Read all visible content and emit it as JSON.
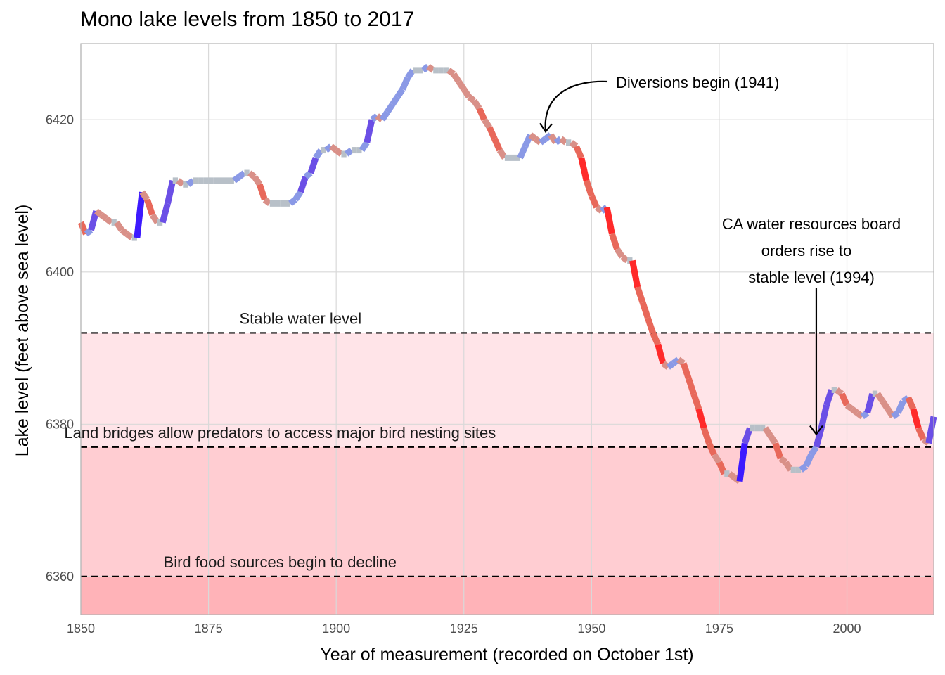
{
  "chart_data": {
    "type": "line",
    "title": "Mono lake levels from 1850 to 2017",
    "xlabel": "Year of measurement (recorded on October 1st)",
    "ylabel": "Lake level (feet above sea level)",
    "xlim": [
      1850,
      2017
    ],
    "ylim": [
      6355,
      6430
    ],
    "x_ticks": [
      1850,
      1875,
      1900,
      1925,
      1950,
      1975,
      2000
    ],
    "y_ticks": [
      6360,
      6380,
      6400,
      6420
    ],
    "grid": true,
    "legend": "none",
    "bands": [
      {
        "from": 6377,
        "to": 6392,
        "color": "#ffe4e8"
      },
      {
        "from": 6360,
        "to": 6377,
        "color": "#ffcdd2"
      },
      {
        "from": 6355,
        "to": 6360,
        "color": "#ffb3b8"
      }
    ],
    "thresholds": [
      {
        "value": 6392,
        "label": "Stable water level",
        "label_x": 1893
      },
      {
        "value": 6377,
        "label": "Land bridges allow predators to access major bird nesting sites",
        "label_x": 1889
      },
      {
        "value": 6360,
        "label": "Bird food sources begin to decline",
        "label_x": 1889
      }
    ],
    "annotations": [
      {
        "text": "Diversions begin (1941)",
        "x": 1941,
        "y": 6417.5
      },
      {
        "lines": [
          "CA water resources board",
          "orders rise to",
          "stable level (1994)"
        ],
        "x": 1994,
        "y": 6378.5
      }
    ],
    "colors": {
      "strong_rise": "#3d1aff",
      "rise": "#6b4fe6",
      "mild_rise": "#8a99e6",
      "flat": "#b8c0c8",
      "mild_fall": "#d99088",
      "fall": "#e8685a",
      "strong_fall": "#ff2a2a",
      "extreme_rise": "#1a0080"
    },
    "series": [
      {
        "x": [
          1850,
          1851,
          1852,
          1853,
          1854,
          1855,
          1856,
          1857,
          1858,
          1859,
          1860,
          1861,
          1862,
          1863,
          1864,
          1865,
          1866,
          1867,
          1868,
          1869,
          1870,
          1871,
          1872,
          1873,
          1874,
          1875,
          1876,
          1877,
          1878,
          1879,
          1880,
          1881,
          1882,
          1883,
          1884,
          1885,
          1886,
          1887,
          1888,
          1889,
          1890,
          1891,
          1892,
          1893,
          1894,
          1895,
          1896,
          1897,
          1898,
          1899,
          1900,
          1901,
          1902,
          1903,
          1904,
          1905,
          1906,
          1907,
          1908,
          1909,
          1910,
          1911,
          1912,
          1913,
          1914,
          1915,
          1916,
          1917,
          1918,
          1919,
          1920,
          1921,
          1922,
          1923,
          1924,
          1925,
          1926,
          1927,
          1928,
          1929,
          1930,
          1931,
          1932,
          1933,
          1934,
          1935,
          1936,
          1937,
          1938,
          1939,
          1940,
          1941,
          1942,
          1943,
          1944,
          1945,
          1946,
          1947,
          1948,
          1949,
          1950,
          1951,
          1952,
          1953,
          1954,
          1955,
          1956,
          1957,
          1958,
          1959,
          1960,
          1961,
          1962,
          1963,
          1964,
          1965,
          1966,
          1967,
          1968,
          1969,
          1970,
          1971,
          1972,
          1973,
          1974,
          1975,
          1976,
          1977,
          1978,
          1979,
          1980,
          1981,
          1982,
          1983,
          1984,
          1985,
          1986,
          1987,
          1988,
          1989,
          1990,
          1991,
          1992,
          1993,
          1994,
          1995,
          1996,
          1997,
          1998,
          1999,
          2000,
          2001,
          2002,
          2003,
          2004,
          2005,
          2006,
          2007,
          2008,
          2009,
          2010,
          2011,
          2012,
          2013,
          2014,
          2015,
          2016,
          2017
        ],
        "values": [
          6406.5,
          6405,
          6405.5,
          6408,
          6407.5,
          6407,
          6406.5,
          6406.5,
          6405.5,
          6405,
          6404.5,
          6404.5,
          6410.5,
          6409.5,
          6407.5,
          6406.5,
          6406.5,
          6409,
          6412,
          6412,
          6411.5,
          6411.5,
          6412,
          6412,
          6412,
          6412,
          6412,
          6412,
          6412,
          6412,
          6412,
          6412.5,
          6413,
          6413,
          6412.5,
          6411.5,
          6409.5,
          6409,
          6409,
          6409,
          6409,
          6409,
          6409.5,
          6410.5,
          6412.5,
          6413,
          6415,
          6416,
          6416,
          6416.5,
          6416,
          6415.5,
          6415.5,
          6416,
          6416,
          6416,
          6417,
          6420,
          6420.5,
          6420,
          6421,
          6422,
          6423,
          6424,
          6425.5,
          6426.5,
          6426.5,
          6426.5,
          6427,
          6426.5,
          6426.5,
          6426.5,
          6426.5,
          6426,
          6425,
          6424,
          6423,
          6422.5,
          6421.5,
          6420,
          6419,
          6417.5,
          6416,
          6415,
          6415,
          6415,
          6415,
          6416.5,
          6418,
          6417.5,
          6417,
          6417.5,
          6418,
          6417,
          6417.5,
          6417,
          6417,
          6416.5,
          6415,
          6412,
          6410,
          6408.5,
          6408,
          6408.5,
          6405,
          6403,
          6402,
          6401.5,
          6401.5,
          6398,
          6396,
          6394,
          6392,
          6390.5,
          6388,
          6387.5,
          6388,
          6388.5,
          6388,
          6386,
          6384,
          6382,
          6379.5,
          6377.5,
          6376,
          6375,
          6373.5,
          6373.5,
          6373,
          6372.5,
          6377.5,
          6379.5,
          6379.5,
          6379.5,
          6379.5,
          6378.5,
          6377.5,
          6375.5,
          6375,
          6374,
          6374,
          6374,
          6374.5,
          6376,
          6377,
          6379.5,
          6382.5,
          6384.5,
          6384.5,
          6384,
          6382.5,
          6382,
          6381.5,
          6381,
          6381.5,
          6384,
          6384,
          6383,
          6382,
          6381,
          6381.5,
          6383,
          6383.5,
          6382,
          6379.5,
          6378,
          6377.5,
          6381
        ]
      }
    ]
  }
}
